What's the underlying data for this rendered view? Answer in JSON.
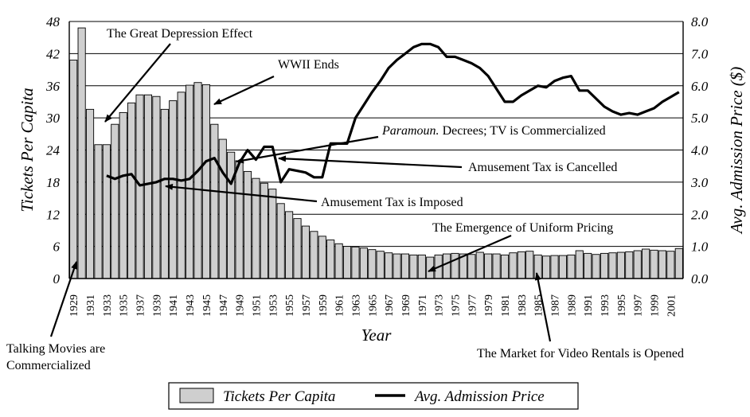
{
  "chart_data": {
    "type": "bar+line",
    "xlabel": "Year",
    "ylabel_left": "Tickets Per Capita",
    "ylabel_right": "Avg. Admission Price ($)",
    "ylim_left": [
      0,
      48
    ],
    "ylim_right": [
      0,
      8
    ],
    "yticks_left": [
      "0",
      "6",
      "12",
      "18",
      "24",
      "30",
      "36",
      "42",
      "48"
    ],
    "yticks_right": [
      "0.0",
      "1.0",
      "2.0",
      "3.0",
      "4.0",
      "5.0",
      "6.0",
      "7.0",
      "8.0"
    ],
    "x_start": 1929,
    "x_end": 2002,
    "xtick_labels": [
      "1929",
      "1931",
      "1933",
      "1935",
      "1937",
      "1939",
      "1941",
      "1943",
      "1945",
      "1947",
      "1949",
      "1951",
      "1953",
      "1955",
      "1957",
      "1959",
      "1961",
      "1963",
      "1965",
      "1967",
      "1969",
      "1971",
      "1973",
      "1975",
      "1977",
      "1979",
      "1981",
      "1983",
      "1985",
      "1987",
      "1989",
      "1991",
      "1993",
      "1995",
      "1997",
      "1999",
      "2001"
    ],
    "grid": "horizontal",
    "legend_position": "bottom-center",
    "series": [
      {
        "name": "Tickets Per Capita",
        "kind": "bar",
        "x": [
          1929,
          1930,
          1931,
          1932,
          1933,
          1934,
          1935,
          1936,
          1937,
          1938,
          1939,
          1940,
          1941,
          1942,
          1943,
          1944,
          1945,
          1946,
          1947,
          1948,
          1949,
          1950,
          1951,
          1952,
          1953,
          1954,
          1955,
          1956,
          1957,
          1958,
          1959,
          1960,
          1961,
          1962,
          1963,
          1964,
          1965,
          1966,
          1967,
          1968,
          1969,
          1970,
          1971,
          1972,
          1973,
          1974,
          1975,
          1976,
          1977,
          1978,
          1979,
          1980,
          1981,
          1982,
          1983,
          1984,
          1985,
          1986,
          1987,
          1988,
          1989,
          1990,
          1991,
          1992,
          1993,
          1994,
          1995,
          1996,
          1997,
          1998,
          1999,
          2000,
          2001,
          2002
        ],
        "values": [
          40.8,
          46.8,
          31.6,
          25.0,
          25.0,
          28.8,
          31.0,
          32.8,
          34.3,
          34.3,
          34.0,
          31.6,
          33.2,
          34.8,
          36.1,
          36.6,
          36.2,
          28.8,
          26.0,
          23.6,
          22.0,
          20.0,
          18.7,
          17.8,
          16.7,
          14.0,
          12.5,
          11.2,
          9.8,
          8.8,
          7.9,
          7.2,
          6.5,
          6.0,
          5.9,
          5.7,
          5.4,
          5.1,
          4.8,
          4.6,
          4.6,
          4.4,
          4.4,
          4.0,
          4.4,
          4.6,
          4.7,
          4.6,
          4.5,
          4.9,
          4.6,
          4.6,
          4.4,
          4.8,
          5.0,
          5.1,
          4.4,
          4.2,
          4.3,
          4.3,
          4.4,
          5.2,
          4.7,
          4.5,
          4.7,
          4.8,
          4.9,
          5.0,
          5.2,
          5.5,
          5.3,
          5.2,
          5.1,
          5.6
        ]
      },
      {
        "name": "Avg. Admission Price",
        "kind": "line",
        "axis": "right",
        "x": [
          1933,
          1934,
          1935,
          1936,
          1937,
          1938,
          1939,
          1940,
          1941,
          1942,
          1943,
          1944,
          1945,
          1946,
          1947,
          1948,
          1949,
          1950,
          1951,
          1952,
          1953,
          1954,
          1955,
          1956,
          1957,
          1958,
          1959,
          1960,
          1961,
          1962,
          1963,
          1964,
          1965,
          1966,
          1967,
          1968,
          1969,
          1970,
          1971,
          1972,
          1973,
          1974,
          1975,
          1976,
          1977,
          1978,
          1979,
          1980,
          1981,
          1982,
          1983,
          1984,
          1985,
          1986,
          1987,
          1988,
          1989,
          1990,
          1991,
          1992,
          1993,
          1994,
          1995,
          1996,
          1997,
          1998,
          1999,
          2000,
          2001,
          2002
        ],
        "values": [
          3.2,
          3.1,
          3.2,
          3.25,
          2.9,
          2.95,
          3.0,
          3.1,
          3.1,
          3.05,
          3.1,
          3.35,
          3.65,
          3.75,
          3.3,
          2.95,
          3.6,
          4.0,
          3.7,
          4.1,
          4.1,
          3.0,
          3.4,
          3.35,
          3.3,
          3.15,
          3.15,
          4.2,
          4.2,
          4.2,
          5.0,
          5.4,
          5.8,
          6.15,
          6.55,
          6.8,
          7.0,
          7.2,
          7.3,
          7.3,
          7.2,
          6.9,
          6.9,
          6.8,
          6.7,
          6.55,
          6.3,
          5.9,
          5.5,
          5.5,
          5.7,
          5.85,
          6.0,
          5.95,
          6.15,
          6.25,
          6.3,
          5.85,
          5.85,
          5.6,
          5.35,
          5.2,
          5.1,
          5.15,
          5.1,
          5.2,
          5.3,
          5.5,
          5.65,
          5.8
        ]
      }
    ],
    "annotations": [
      {
        "text": "The Great Depression Effect"
      },
      {
        "text": "WWII Ends"
      },
      {
        "text_italic": "Paramoun.",
        "text": "Decrees; TV is Commercialized"
      },
      {
        "text": "Amusement Tax is Cancelled"
      },
      {
        "text": "Amusement Tax is Imposed"
      },
      {
        "text": "The Emergence of Uniform Pricing"
      },
      {
        "text_lines": [
          "Talking Movies are",
          "Commercialized"
        ]
      },
      {
        "text": "The Market for Video Rentals is Opened"
      }
    ]
  }
}
